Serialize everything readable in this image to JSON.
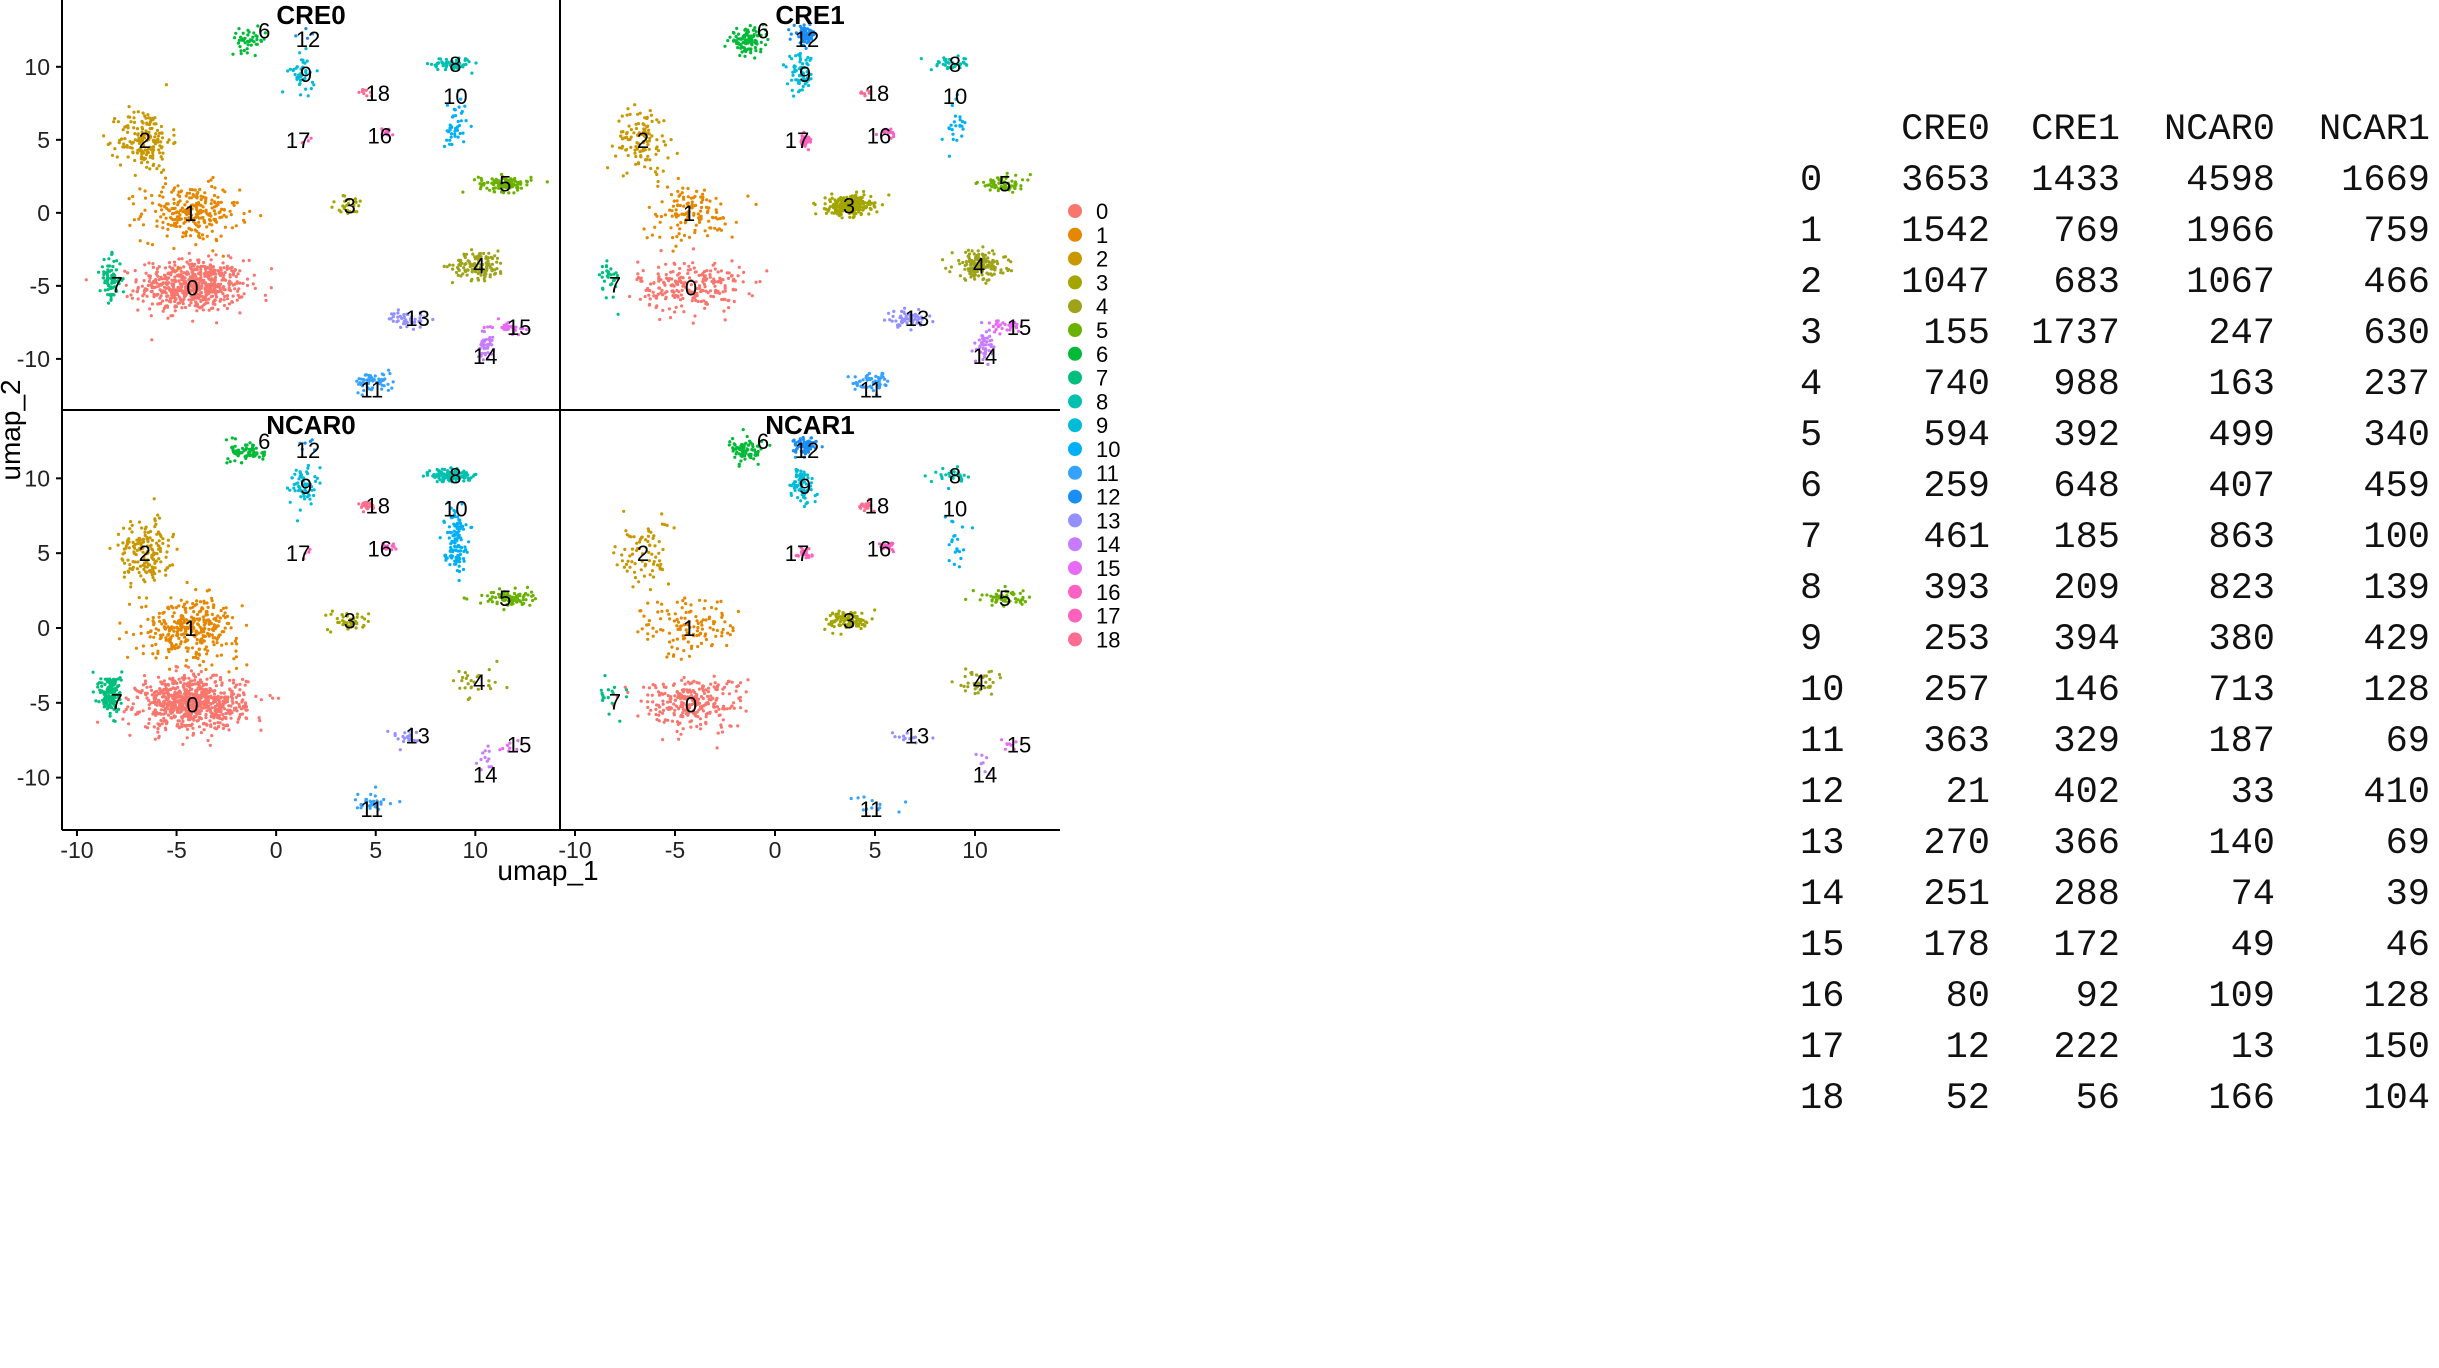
{
  "chart_data": {
    "type": "scatter",
    "xlabel": "umap_1",
    "ylabel": "umap_2",
    "xlim": [
      -10.5,
      14
    ],
    "ylim": [
      -13.5,
      14.3
    ],
    "xticks": [
      -10,
      -5,
      0,
      5,
      10
    ],
    "yticks": [
      -10,
      -5,
      0,
      5,
      10
    ],
    "panels": [
      "CRE0",
      "CRE1",
      "NCAR0",
      "NCAR1"
    ],
    "legend_placement": "right",
    "clusters": [
      {
        "name": "0",
        "color": "#F8766D",
        "center": [
          -4.2,
          -5.0
        ],
        "spread": [
          2.4,
          1.6
        ]
      },
      {
        "name": "1",
        "color": "#E58700",
        "center": [
          -4.3,
          0.0
        ],
        "spread": [
          2.2,
          1.8
        ]
      },
      {
        "name": "2",
        "color": "#C99800",
        "center": [
          -6.6,
          5.0
        ],
        "spread": [
          1.2,
          2.0
        ]
      },
      {
        "name": "3",
        "color": "#A3A500",
        "center": [
          3.7,
          0.5
        ],
        "spread": [
          1.0,
          0.6
        ]
      },
      {
        "name": "4",
        "color": "#9EA31A",
        "center": [
          10.2,
          -3.6
        ],
        "spread": [
          1.2,
          0.9
        ]
      },
      {
        "name": "5",
        "color": "#6BB100",
        "center": [
          11.5,
          2.0
        ],
        "spread": [
          1.2,
          0.5
        ]
      },
      {
        "name": "6",
        "color": "#00BA38",
        "center": [
          -1.4,
          11.8
        ],
        "spread": [
          0.8,
          0.7
        ]
      },
      {
        "name": "7",
        "color": "#00BF7D",
        "center": [
          -8.3,
          -4.5
        ],
        "spread": [
          0.5,
          1.3
        ]
      },
      {
        "name": "8",
        "color": "#00C0AF",
        "center": [
          8.8,
          10.2
        ],
        "spread": [
          0.9,
          0.4
        ]
      },
      {
        "name": "9",
        "color": "#00BCD8",
        "center": [
          1.3,
          9.5
        ],
        "spread": [
          0.6,
          1.2
        ]
      },
      {
        "name": "10",
        "color": "#00B0F6",
        "center": [
          9.0,
          6.0
        ],
        "spread": [
          0.5,
          1.8
        ]
      },
      {
        "name": "11",
        "color": "#35A2FF",
        "center": [
          4.9,
          -11.6
        ],
        "spread": [
          0.9,
          0.6
        ]
      },
      {
        "name": "12",
        "color": "#1B8EF5",
        "center": [
          1.5,
          12.2
        ],
        "spread": [
          0.5,
          0.5
        ]
      },
      {
        "name": "13",
        "color": "#9590FF",
        "center": [
          6.6,
          -7.3
        ],
        "spread": [
          0.9,
          0.5
        ]
      },
      {
        "name": "14",
        "color": "#C77CFF",
        "center": [
          10.5,
          -9.0
        ],
        "spread": [
          0.35,
          0.9
        ]
      },
      {
        "name": "15",
        "color": "#E76BF3",
        "center": [
          11.6,
          -7.8
        ],
        "spread": [
          0.7,
          0.4
        ]
      },
      {
        "name": "16",
        "color": "#FF61C3",
        "center": [
          5.6,
          5.5
        ],
        "spread": [
          0.35,
          0.3
        ]
      },
      {
        "name": "17",
        "color": "#FF62BC",
        "center": [
          1.5,
          5.0
        ],
        "spread": [
          0.3,
          0.35
        ]
      },
      {
        "name": "18",
        "color": "#FF6C91",
        "center": [
          4.5,
          8.2
        ],
        "spread": [
          0.3,
          0.25
        ]
      }
    ],
    "label_positions": {
      "0": [
        -4.2,
        -5.1
      ],
      "1": [
        -4.3,
        0.0
      ],
      "2": [
        -6.6,
        5.0
      ],
      "3": [
        3.7,
        0.5
      ],
      "4": [
        10.2,
        -3.6
      ],
      "5": [
        11.5,
        2.0
      ],
      "6": [
        -0.6,
        12.5
      ],
      "7": [
        -8.0,
        -4.9
      ],
      "8": [
        9.0,
        10.2
      ],
      "9": [
        1.5,
        9.5
      ],
      "10": [
        9.0,
        8.0
      ],
      "11": [
        4.8,
        -12.1
      ],
      "12": [
        1.6,
        11.9
      ],
      "13": [
        7.1,
        -7.2
      ],
      "14": [
        10.5,
        -9.8
      ],
      "15": [
        12.2,
        -7.8
      ],
      "16": [
        5.2,
        5.3
      ],
      "17": [
        1.1,
        5.0
      ],
      "18": [
        5.1,
        8.2
      ]
    },
    "counts": {
      "columns": [
        "CRE0",
        "CRE1",
        "NCAR0",
        "NCAR1"
      ],
      "rows": [
        {
          "cluster": "0",
          "values": [
            3653,
            1433,
            4598,
            1669
          ]
        },
        {
          "cluster": "1",
          "values": [
            1542,
            769,
            1966,
            759
          ]
        },
        {
          "cluster": "2",
          "values": [
            1047,
            683,
            1067,
            466
          ]
        },
        {
          "cluster": "3",
          "values": [
            155,
            1737,
            247,
            630
          ]
        },
        {
          "cluster": "4",
          "values": [
            740,
            988,
            163,
            237
          ]
        },
        {
          "cluster": "5",
          "values": [
            594,
            392,
            499,
            340
          ]
        },
        {
          "cluster": "6",
          "values": [
            259,
            648,
            407,
            459
          ]
        },
        {
          "cluster": "7",
          "values": [
            461,
            185,
            863,
            100
          ]
        },
        {
          "cluster": "8",
          "values": [
            393,
            209,
            823,
            139
          ]
        },
        {
          "cluster": "9",
          "values": [
            253,
            394,
            380,
            429
          ]
        },
        {
          "cluster": "10",
          "values": [
            257,
            146,
            713,
            128
          ]
        },
        {
          "cluster": "11",
          "values": [
            363,
            329,
            187,
            69
          ]
        },
        {
          "cluster": "12",
          "values": [
            21,
            402,
            33,
            410
          ]
        },
        {
          "cluster": "13",
          "values": [
            270,
            366,
            140,
            69
          ]
        },
        {
          "cluster": "14",
          "values": [
            251,
            288,
            74,
            39
          ]
        },
        {
          "cluster": "15",
          "values": [
            178,
            172,
            49,
            46
          ]
        },
        {
          "cluster": "16",
          "values": [
            80,
            92,
            109,
            128
          ]
        },
        {
          "cluster": "17",
          "values": [
            12,
            222,
            13,
            150
          ]
        },
        {
          "cluster": "18",
          "values": [
            52,
            56,
            166,
            104
          ]
        }
      ]
    }
  }
}
